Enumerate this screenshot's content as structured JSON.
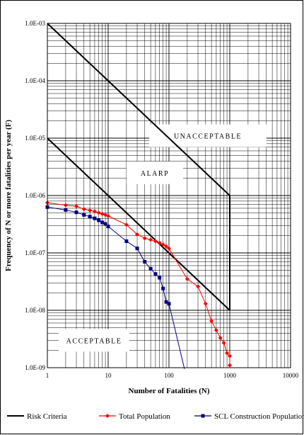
{
  "chart_data": {
    "type": "line",
    "title": "",
    "xlabel": "Number of Fatalities (N)",
    "ylabel": "Frequency of N or more fatalities per year (F)",
    "x_scale": "log",
    "y_scale": "log",
    "xlim": [
      1,
      10000
    ],
    "ylim": [
      1e-09,
      0.001
    ],
    "x_ticks": [
      "1",
      "10",
      "100",
      "1000",
      "10000"
    ],
    "y_ticks": [
      "1.0E-09",
      "1.0E-08",
      "1.0E-07",
      "1.0E-06",
      "1.0E-05",
      "1.0E-04",
      "1.0E-03"
    ],
    "grid": true,
    "legend_position": "bottom",
    "annotations": [
      {
        "text": "UNACCEPTABLE",
        "x": 100,
        "y": 1.1e-05
      },
      {
        "text": "ALARP",
        "x": 30,
        "y": 2.5e-06
      },
      {
        "text": "ACCEPTABLE",
        "x": 2,
        "y": 3e-09
      }
    ],
    "series": [
      {
        "name": "Risk Criteria",
        "color": "#000000",
        "marker": "none",
        "segments": [
          [
            [
              1,
              0.001
            ],
            [
              1000,
              1e-06
            ]
          ],
          [
            [
              1,
              1e-05
            ],
            [
              1000,
              1e-08
            ]
          ],
          [
            [
              1000,
              1e-06
            ],
            [
              1000,
              1e-08
            ]
          ]
        ]
      },
      {
        "name": "Total Population",
        "color": "#ff0000",
        "marker": "diamond",
        "points": [
          [
            1,
            7.5e-07
          ],
          [
            2,
            6.8e-07
          ],
          [
            3,
            6.5e-07
          ],
          [
            4,
            5.8e-07
          ],
          [
            5,
            5.5e-07
          ],
          [
            6,
            5.3e-07
          ],
          [
            7,
            5e-07
          ],
          [
            8,
            4.8e-07
          ],
          [
            9,
            4.6e-07
          ],
          [
            10,
            4.4e-07
          ],
          [
            20,
            3.1e-07
          ],
          [
            30,
            2.1e-07
          ],
          [
            40,
            1.8e-07
          ],
          [
            50,
            1.7e-07
          ],
          [
            60,
            1.6e-07
          ],
          [
            70,
            1.5e-07
          ],
          [
            80,
            1.4e-07
          ],
          [
            90,
            1.3e-07
          ],
          [
            100,
            1.2e-07
          ],
          [
            200,
            3.5e-08
          ],
          [
            300,
            2.6e-08
          ],
          [
            400,
            1.3e-08
          ],
          [
            500,
            6.5e-09
          ],
          [
            600,
            4.5e-09
          ],
          [
            700,
            3.3e-09
          ],
          [
            800,
            2.7e-09
          ],
          [
            900,
            1.8e-09
          ],
          [
            1000,
            1.6e-09
          ],
          [
            1000,
            1.1e-09
          ]
        ]
      },
      {
        "name": "SCL Construction Population",
        "color": "#000080",
        "marker": "square",
        "points": [
          [
            1,
            6.3e-07
          ],
          [
            2,
            5.6e-07
          ],
          [
            3,
            5.1e-07
          ],
          [
            4,
            4.6e-07
          ],
          [
            5,
            4.3e-07
          ],
          [
            6,
            4e-07
          ],
          [
            7,
            3.7e-07
          ],
          [
            8,
            3.4e-07
          ],
          [
            9,
            3.2e-07
          ],
          [
            10,
            2.9e-07
          ],
          [
            20,
            1.6e-07
          ],
          [
            30,
            1.2e-07
          ],
          [
            40,
            7e-08
          ],
          [
            50,
            5.3e-08
          ],
          [
            60,
            4.3e-08
          ],
          [
            70,
            3.7e-08
          ],
          [
            80,
            2.4e-08
          ],
          [
            90,
            1.4e-08
          ],
          [
            100,
            1.3e-08
          ]
        ],
        "tail": [
          [
            100,
            1.3e-08
          ],
          [
            180,
            9.5e-10
          ]
        ]
      }
    ]
  }
}
